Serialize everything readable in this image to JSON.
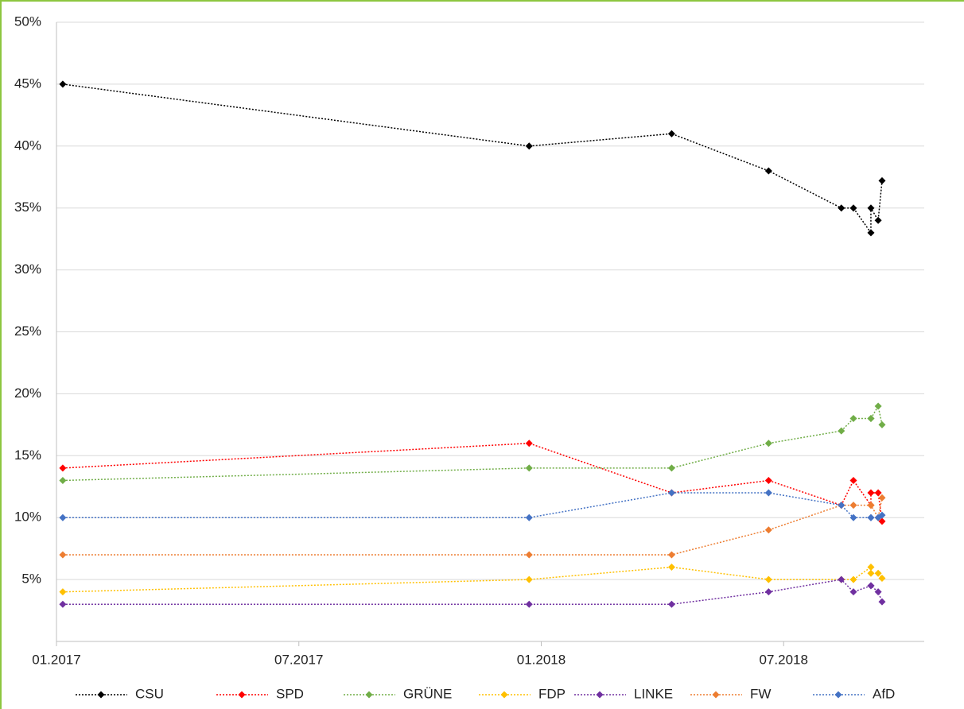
{
  "chart_data": {
    "type": "line",
    "x": [
      2017.013,
      2017.975,
      2018.269,
      2018.469,
      2018.619,
      2018.644,
      2018.68,
      2018.68,
      2018.695,
      2018.703
    ],
    "xlim": [
      2017,
      2018.79
    ],
    "xticks": [
      {
        "value": 2017,
        "label": "01.2017"
      },
      {
        "value": 2017.5,
        "label": "07.2017"
      },
      {
        "value": 2018,
        "label": "01.2018"
      },
      {
        "value": 2018.5,
        "label": "07.2018"
      }
    ],
    "ylim": [
      0,
      50
    ],
    "yticks": [
      {
        "value": 5,
        "label": "5%"
      },
      {
        "value": 10,
        "label": "10%"
      },
      {
        "value": 15,
        "label": "15%"
      },
      {
        "value": 20,
        "label": "20%"
      },
      {
        "value": 25,
        "label": "25%"
      },
      {
        "value": 30,
        "label": "30%"
      },
      {
        "value": 35,
        "label": "35%"
      },
      {
        "value": 40,
        "label": "40%"
      },
      {
        "value": 45,
        "label": "45%"
      },
      {
        "value": 50,
        "label": "50%"
      }
    ],
    "grid": true,
    "legend": "bottom",
    "series": [
      {
        "name": "CSU",
        "color": "#000000",
        "values": [
          45,
          40,
          41,
          38,
          35,
          35,
          33,
          35,
          34,
          37.2
        ]
      },
      {
        "name": "SPD",
        "color": "#ff0000",
        "values": [
          14,
          16,
          12,
          13,
          11,
          13,
          11,
          12,
          12,
          9.7
        ]
      },
      {
        "name": "GRÜNE",
        "color": "#70ad47",
        "values": [
          13,
          14,
          14,
          16,
          17,
          18,
          18,
          18,
          19,
          17.5
        ]
      },
      {
        "name": "FDP",
        "color": "#ffc000",
        "values": [
          4,
          5,
          6,
          5,
          5,
          5,
          6,
          5.5,
          5.5,
          5.1
        ]
      },
      {
        "name": "LINKE",
        "color": "#7030a0",
        "values": [
          3,
          3,
          3,
          4,
          5,
          4,
          4.5,
          4.5,
          4,
          3.2
        ]
      },
      {
        "name": "FW",
        "color": "#ed7d31",
        "values": [
          7,
          7,
          7,
          9,
          11,
          11,
          11,
          11,
          10,
          11.6
        ]
      },
      {
        "name": "AfD",
        "color": "#4472c4",
        "values": [
          10,
          10,
          12,
          12,
          11,
          10,
          10,
          10,
          10,
          10.2
        ]
      }
    ]
  }
}
